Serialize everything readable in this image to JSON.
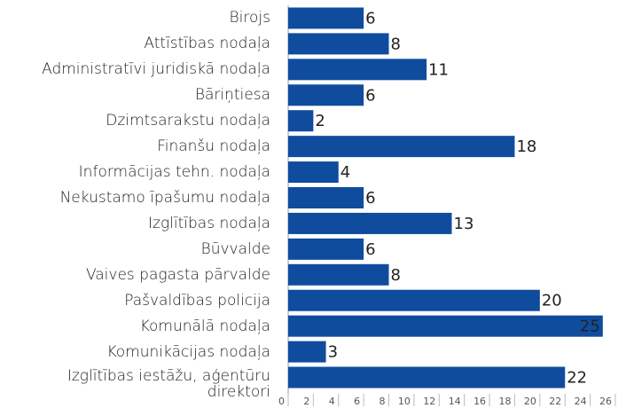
{
  "chart_data": {
    "type": "bar",
    "orientation": "horizontal",
    "categories": [
      "Birojs",
      "Attīstības nodaļa",
      "Administratīvi juridiskā nodaļa",
      "Bāriņtiesa",
      "Dzimtsarakstu nodaļa",
      "Finanšu nodaļa",
      "Informācijas tehn. nodaļa",
      "Nekustamo īpašumu nodaļa",
      "Izglītības nodaļa",
      "Būvvalde",
      "Vaives pagasta pārvalde",
      "Pašvaldības policija",
      "Komunālā nodaļa",
      "Komunikācijas nodaļa",
      "Izglītības iestāžu, aģentūru direktori"
    ],
    "values": [
      6,
      8,
      11,
      6,
      2,
      18,
      4,
      6,
      13,
      6,
      8,
      20,
      25,
      3,
      22
    ],
    "color": "#0f4c9e",
    "xlim": [
      0,
      26
    ],
    "xticks": [
      0,
      2,
      4,
      6,
      8,
      10,
      12,
      14,
      16,
      18,
      20,
      22,
      24,
      26
    ]
  }
}
